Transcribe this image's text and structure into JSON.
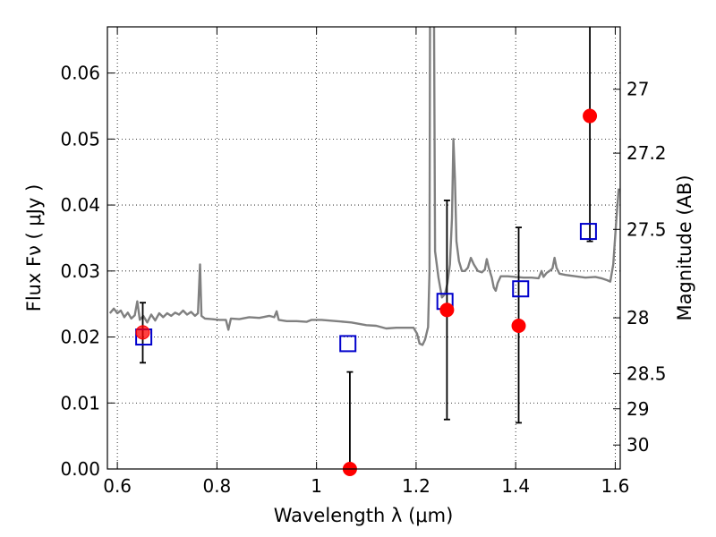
{
  "chart_data": {
    "type": "scatter",
    "xlabel": "Wavelength  λ (μm)",
    "ylabel": "Flux  Fν  ( μJy )",
    "ylabel_right": "Magnitude (AB)",
    "xlim": [
      0.58,
      1.61
    ],
    "ylim": [
      0.0,
      0.067
    ],
    "grid": true,
    "x_ticks": [
      {
        "value": 0.6,
        "label": "0.6"
      },
      {
        "value": 0.8,
        "label": "0.8"
      },
      {
        "value": 1.0,
        "label": "1"
      },
      {
        "value": 1.2,
        "label": "1.2"
      },
      {
        "value": 1.4,
        "label": "1.4"
      },
      {
        "value": 1.6,
        "label": "1.6"
      }
    ],
    "y_ticks": [
      {
        "value": 0.0,
        "label": "0.00"
      },
      {
        "value": 0.01,
        "label": "0.01"
      },
      {
        "value": 0.02,
        "label": "0.02"
      },
      {
        "value": 0.03,
        "label": "0.03"
      },
      {
        "value": 0.04,
        "label": "0.04"
      },
      {
        "value": 0.05,
        "label": "0.05"
      },
      {
        "value": 0.06,
        "label": "0.06"
      }
    ],
    "mag_ticks": [
      {
        "value": 27,
        "label": "27"
      },
      {
        "value": 27.2,
        "label": "27.2"
      },
      {
        "value": 27.5,
        "label": "27.5"
      },
      {
        "value": 28,
        "label": "28"
      },
      {
        "value": 28.5,
        "label": "28.5"
      },
      {
        "value": 29,
        "label": "29"
      },
      {
        "value": 30,
        "label": "30"
      }
    ],
    "series": [
      {
        "kind": "model-spectrum",
        "color": "#808080",
        "points": [
          [
            0.585,
            0.0236
          ],
          [
            0.593,
            0.0243
          ],
          [
            0.6,
            0.0236
          ],
          [
            0.607,
            0.024
          ],
          [
            0.614,
            0.023
          ],
          [
            0.621,
            0.0237
          ],
          [
            0.628,
            0.0228
          ],
          [
            0.635,
            0.0233
          ],
          [
            0.64,
            0.0254
          ],
          [
            0.645,
            0.0226
          ],
          [
            0.652,
            0.0232
          ],
          [
            0.66,
            0.0222
          ],
          [
            0.668,
            0.0234
          ],
          [
            0.676,
            0.0225
          ],
          [
            0.684,
            0.0236
          ],
          [
            0.692,
            0.023
          ],
          [
            0.7,
            0.0236
          ],
          [
            0.708,
            0.0232
          ],
          [
            0.716,
            0.0237
          ],
          [
            0.724,
            0.0234
          ],
          [
            0.732,
            0.024
          ],
          [
            0.74,
            0.0234
          ],
          [
            0.748,
            0.0238
          ],
          [
            0.756,
            0.0232
          ],
          [
            0.762,
            0.0236
          ],
          [
            0.766,
            0.031
          ],
          [
            0.769,
            0.0232
          ],
          [
            0.776,
            0.0228
          ],
          [
            0.79,
            0.0227
          ],
          [
            0.805,
            0.0226
          ],
          [
            0.818,
            0.0226
          ],
          [
            0.823,
            0.0211
          ],
          [
            0.828,
            0.0228
          ],
          [
            0.845,
            0.0227
          ],
          [
            0.865,
            0.023
          ],
          [
            0.885,
            0.0229
          ],
          [
            0.905,
            0.0232
          ],
          [
            0.915,
            0.023
          ],
          [
            0.92,
            0.0239
          ],
          [
            0.924,
            0.0226
          ],
          [
            0.94,
            0.0224
          ],
          [
            0.96,
            0.0224
          ],
          [
            0.98,
            0.0223
          ],
          [
            0.99,
            0.0226
          ],
          [
            1.01,
            0.0226
          ],
          [
            1.04,
            0.0224
          ],
          [
            1.07,
            0.0222
          ],
          [
            1.1,
            0.0218
          ],
          [
            1.12,
            0.0217
          ],
          [
            1.14,
            0.0213
          ],
          [
            1.16,
            0.0214
          ],
          [
            1.18,
            0.0214
          ],
          [
            1.195,
            0.0214
          ],
          [
            1.202,
            0.0205
          ],
          [
            1.207,
            0.019
          ],
          [
            1.213,
            0.0188
          ],
          [
            1.218,
            0.0196
          ],
          [
            1.224,
            0.0215
          ],
          [
            1.227,
            0.03
          ],
          [
            1.228,
            0.07
          ],
          [
            1.236,
            0.07
          ],
          [
            1.238,
            0.033
          ],
          [
            1.245,
            0.029
          ],
          [
            1.252,
            0.026
          ],
          [
            1.258,
            0.0265
          ],
          [
            1.263,
            0.0282
          ],
          [
            1.268,
            0.031
          ],
          [
            1.272,
            0.038
          ],
          [
            1.275,
            0.05
          ],
          [
            1.278,
            0.044
          ],
          [
            1.281,
            0.0345
          ],
          [
            1.286,
            0.0315
          ],
          [
            1.292,
            0.03
          ],
          [
            1.298,
            0.03
          ],
          [
            1.304,
            0.0305
          ],
          [
            1.31,
            0.032
          ],
          [
            1.316,
            0.031
          ],
          [
            1.324,
            0.03
          ],
          [
            1.332,
            0.0298
          ],
          [
            1.338,
            0.0302
          ],
          [
            1.342,
            0.0318
          ],
          [
            1.346,
            0.0305
          ],
          [
            1.352,
            0.029
          ],
          [
            1.356,
            0.0275
          ],
          [
            1.36,
            0.027
          ],
          [
            1.364,
            0.0282
          ],
          [
            1.37,
            0.0292
          ],
          [
            1.384,
            0.0292
          ],
          [
            1.4,
            0.0291
          ],
          [
            1.416,
            0.029
          ],
          [
            1.432,
            0.029
          ],
          [
            1.446,
            0.0289
          ],
          [
            1.452,
            0.03
          ],
          [
            1.456,
            0.0291
          ],
          [
            1.462,
            0.0297
          ],
          [
            1.468,
            0.03
          ],
          [
            1.474,
            0.0304
          ],
          [
            1.478,
            0.032
          ],
          [
            1.482,
            0.0305
          ],
          [
            1.488,
            0.0296
          ],
          [
            1.5,
            0.0294
          ],
          [
            1.52,
            0.0292
          ],
          [
            1.54,
            0.029
          ],
          [
            1.56,
            0.0291
          ],
          [
            1.572,
            0.0289
          ],
          [
            1.584,
            0.0286
          ],
          [
            1.59,
            0.0284
          ],
          [
            1.596,
            0.031
          ],
          [
            1.602,
            0.0375
          ],
          [
            1.607,
            0.0425
          ]
        ]
      },
      {
        "kind": "observed-photometry",
        "color": "#ff0000",
        "points": [
          {
            "x": 0.651,
            "y": 0.0207,
            "err_lo": 0.0161,
            "err_hi": 0.0252
          },
          {
            "x": 1.067,
            "y": 0.0,
            "err_lo": 0.0,
            "err_hi": 0.0147
          },
          {
            "x": 1.262,
            "y": 0.0241,
            "err_lo": 0.0075,
            "err_hi": 0.0407
          },
          {
            "x": 1.406,
            "y": 0.0217,
            "err_lo": 0.007,
            "err_hi": 0.0366
          },
          {
            "x": 1.549,
            "y": 0.0535,
            "err_lo": 0.0345,
            "err_hi": 0.068
          }
        ]
      },
      {
        "kind": "model-photometry",
        "color": "#0000cc",
        "points": [
          {
            "x": 0.653,
            "y": 0.02
          },
          {
            "x": 1.063,
            "y": 0.019
          },
          {
            "x": 1.258,
            "y": 0.0254
          },
          {
            "x": 1.41,
            "y": 0.0273
          },
          {
            "x": 1.546,
            "y": 0.036
          }
        ]
      }
    ]
  }
}
